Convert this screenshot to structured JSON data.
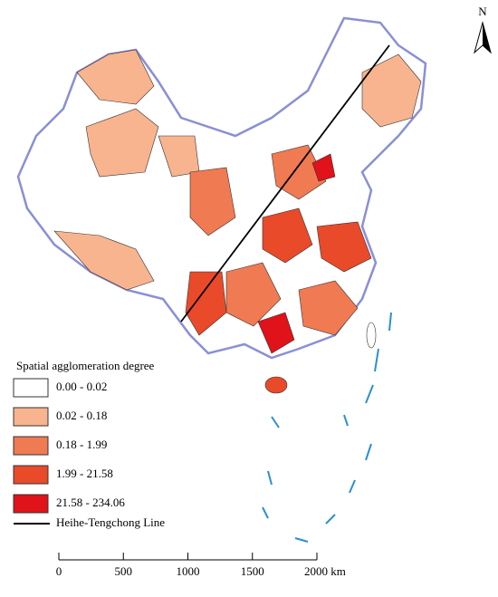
{
  "north": "N",
  "legend": {
    "title": "Spatial agglomeration degree",
    "classes": [
      {
        "label": "0.00 - 0.02",
        "color": "#ffffff"
      },
      {
        "label": "0.02 - 0.18",
        "color": "#f7b48f"
      },
      {
        "label": "0.18 - 1.99",
        "color": "#f07a52"
      },
      {
        "label": "1.99 - 21.58",
        "color": "#e94a2a"
      },
      {
        "label": "21.58 - 234.06",
        "color": "#e0121a"
      }
    ],
    "line": {
      "label": "Heihe-Tengchong Line"
    }
  },
  "scale_bar": {
    "labels": [
      "0",
      "500",
      "1000",
      "1500",
      "2000 km"
    ]
  }
}
